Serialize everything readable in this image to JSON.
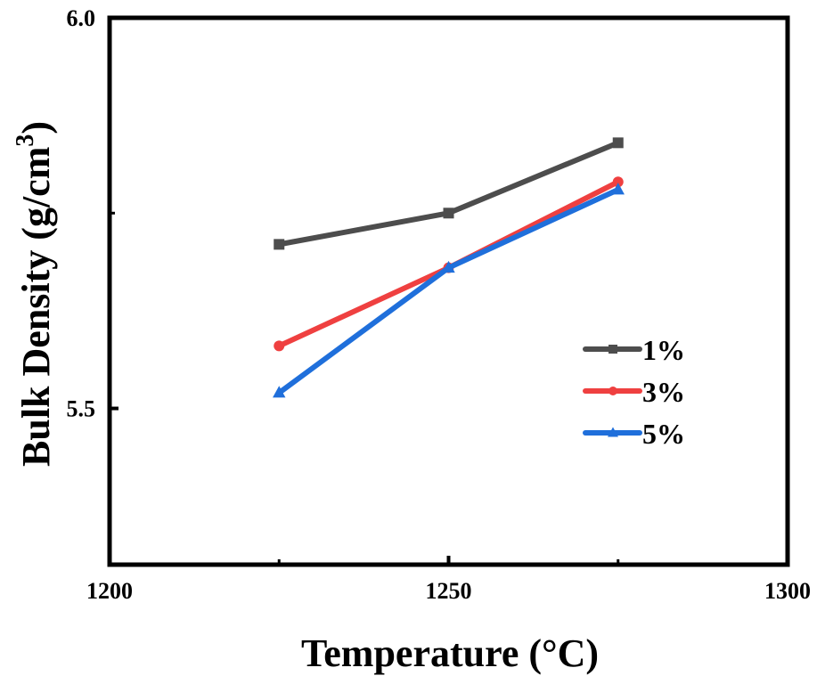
{
  "chart_data": {
    "type": "line",
    "title": "",
    "xlabel": "Temperature (°C)",
    "ylabel": "Bulk Density (g/cm",
    "ylabel_superscript": "3",
    "ylabel_close": ")",
    "xlim": [
      1200,
      1300
    ],
    "ylim": [
      5.3,
      6.0
    ],
    "x_ticks": [
      1200,
      1250,
      1300
    ],
    "x_tick_labels": [
      "1200",
      "1250",
      "1300"
    ],
    "x_minor_ticks": [
      1225,
      1275
    ],
    "y_ticks": [
      5.5,
      6.0
    ],
    "y_tick_labels": [
      "5.5",
      "6.0"
    ],
    "y_minor_ticks": [
      5.75
    ],
    "grid": false,
    "legend_position": "center-right",
    "x": [
      1225,
      1250,
      1275
    ],
    "series": [
      {
        "name": "1%",
        "values": [
          5.71,
          5.75,
          5.84
        ],
        "color": "#4d4d4d",
        "marker": "square"
      },
      {
        "name": "3%",
        "values": [
          5.58,
          5.68,
          5.79
        ],
        "color": "#ef4040",
        "marker": "circle"
      },
      {
        "name": "5%",
        "values": [
          5.52,
          5.68,
          5.78
        ],
        "color": "#1f6fdb",
        "marker": "triangle"
      }
    ]
  }
}
